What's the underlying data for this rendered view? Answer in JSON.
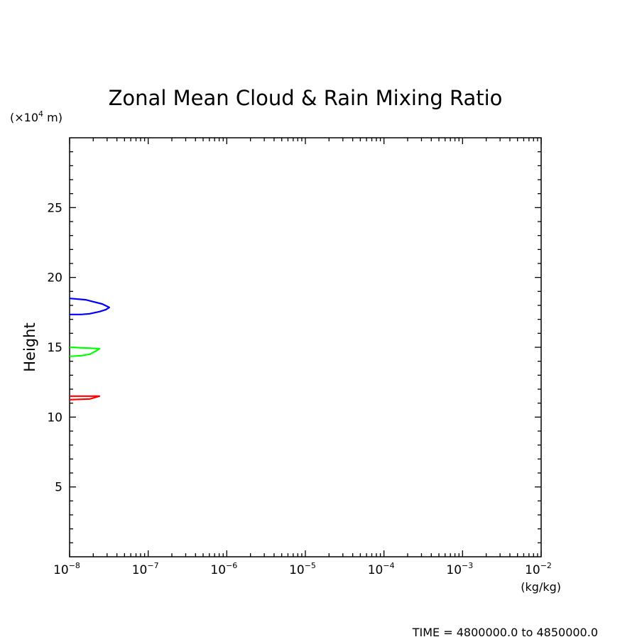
{
  "chart_data": {
    "type": "line",
    "title": "Zonal Mean Cloud & Rain Mixing Ratio",
    "xlabel": "(kg/kg)",
    "ylabel": "Height",
    "y_unit_label": "(×10⁴ m)",
    "y_unit_prefix": "(×10",
    "y_unit_exp": "4",
    "y_unit_suffix": " m)",
    "x_scale": "log",
    "xlim": [
      1e-08,
      0.01
    ],
    "ylim": [
      0,
      30
    ],
    "x_ticks": [
      {
        "mantissa": "10",
        "exp": "−8",
        "value": 1e-08
      },
      {
        "mantissa": "10",
        "exp": "−7",
        "value": 1e-07
      },
      {
        "mantissa": "10",
        "exp": "−6",
        "value": 1e-06
      },
      {
        "mantissa": "10",
        "exp": "−5",
        "value": 1e-05
      },
      {
        "mantissa": "10",
        "exp": "−4",
        "value": 0.0001
      },
      {
        "mantissa": "10",
        "exp": "−3",
        "value": 0.001
      },
      {
        "mantissa": "10",
        "exp": "−2",
        "value": 0.01
      }
    ],
    "y_ticks": [
      5,
      10,
      15,
      20,
      25
    ],
    "y_minor_step": 1,
    "grid": false,
    "series": [
      {
        "color": "#ff0000",
        "x": [
          1e-08,
          2.4e-08,
          1.8e-08,
          1e-08
        ],
        "y": [
          11.5,
          11.5,
          11.3,
          11.25
        ]
      },
      {
        "color": "#00ff00",
        "x": [
          1e-08,
          1.6e-08,
          2.4e-08,
          2.2e-08,
          1.8e-08,
          1.4e-08,
          1e-08
        ],
        "y": [
          15.0,
          14.95,
          14.9,
          14.75,
          14.5,
          14.4,
          14.35
        ]
      },
      {
        "color": "#0000ff",
        "x": [
          1e-08,
          1.6e-08,
          2.6e-08,
          3.2e-08,
          2.9e-08,
          2.4e-08,
          1.8e-08,
          1.4e-08,
          1e-08
        ],
        "y": [
          18.5,
          18.4,
          18.1,
          17.85,
          17.7,
          17.55,
          17.4,
          17.35,
          17.35
        ]
      }
    ]
  },
  "footer": {
    "time_note": "TIME = 4800000.0 to 4850000.0"
  }
}
